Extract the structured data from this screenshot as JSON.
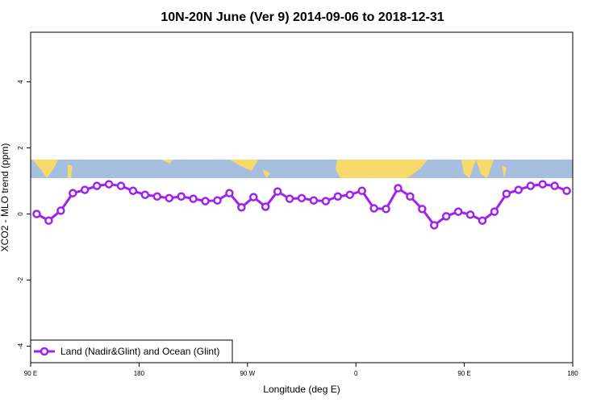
{
  "chart_data": {
    "type": "line",
    "title": "10N-20N June (Ver 9)   2014-09-06 to 2018-12-31",
    "x_label": "Longitude (deg E)",
    "y_label": "XCO2 - MLO trend (ppm)",
    "x": [
      95,
      105,
      115,
      125,
      135,
      145,
      155,
      165,
      175,
      185,
      195,
      205,
      215,
      225,
      235,
      245,
      255,
      265,
      275,
      285,
      295,
      305,
      315,
      325,
      335,
      345,
      355,
      365,
      375,
      385,
      395,
      405,
      415,
      425,
      435,
      445,
      455,
      465,
      475,
      485,
      495,
      505,
      515,
      525,
      535
    ],
    "series": [
      {
        "name": "Land (Nadir&Glint) and Ocean (Glint)",
        "color": "#a020f0",
        "values": [
          0.0,
          -0.2,
          0.1,
          0.63,
          0.73,
          0.85,
          0.9,
          0.85,
          0.7,
          0.58,
          0.53,
          0.48,
          0.53,
          0.46,
          0.39,
          0.41,
          0.63,
          0.2,
          0.51,
          0.22,
          0.68,
          0.46,
          0.48,
          0.41,
          0.39,
          0.53,
          0.58,
          0.7,
          0.17,
          0.15,
          0.78,
          0.53,
          0.15,
          -0.34,
          -0.07,
          0.07,
          -0.02,
          -0.2,
          0.07,
          0.61,
          0.73,
          0.85,
          0.9,
          0.85,
          0.7
        ]
      }
    ],
    "xlim": [
      90,
      540
    ],
    "xticks": [
      {
        "value": 90,
        "label": "90 E"
      },
      180,
      {
        "value": 270,
        "label": "90 W"
      },
      {
        "value": 360,
        "label": "0"
      },
      {
        "value": 450,
        "label": "90 E"
      },
      {
        "value": 540,
        "label": "180"
      }
    ],
    "ylim": [
      -4.5,
      5.5
    ],
    "yticks": [
      -4,
      -2,
      0,
      2,
      4
    ],
    "legend": "bottom-left"
  }
}
